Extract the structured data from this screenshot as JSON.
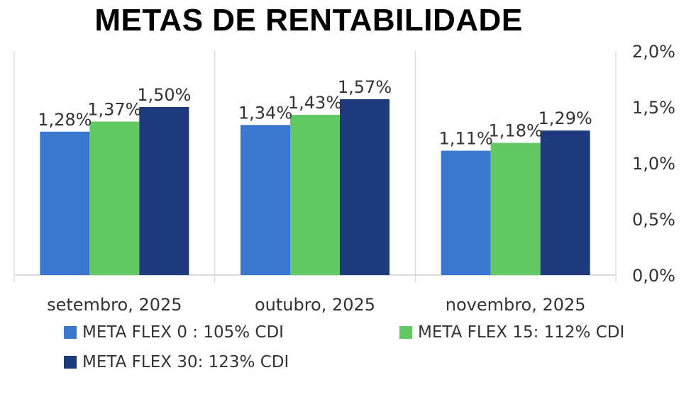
{
  "chart_data": {
    "type": "bar",
    "title": "METAS DE RENTABILIDADE",
    "categories": [
      "setembro, 2025",
      "outubro, 2025",
      "novembro, 2025"
    ],
    "series": [
      {
        "name": "META FLEX 0 : 105% CDI",
        "color": "#3A78CF",
        "values": [
          1.28,
          1.34,
          1.11
        ],
        "labels": [
          "1,28%",
          "1,34%",
          "1,11%"
        ]
      },
      {
        "name": "META FLEX 15: 112% CDI",
        "color": "#62C863",
        "values": [
          1.37,
          1.43,
          1.18
        ],
        "labels": [
          "1,37%",
          "1,43%",
          "1,18%"
        ]
      },
      {
        "name": "META FLEX 30: 123% CDI",
        "color": "#1E3A7D",
        "values": [
          1.5,
          1.57,
          1.29
        ],
        "labels": [
          "1,50%",
          "1,57%",
          "1,29%"
        ]
      }
    ],
    "ylim": [
      0,
      2.0
    ],
    "yticks": [
      {
        "value": 0,
        "label": "0,0%"
      },
      {
        "value": 0.5,
        "label": "0,5%"
      },
      {
        "value": 1.0,
        "label": "1,0%"
      },
      {
        "value": 1.5,
        "label": "1,5%"
      },
      {
        "value": 2.0,
        "label": "2,0%"
      }
    ],
    "y_axis_side": "right",
    "xlabel": "",
    "ylabel": "",
    "legend_position": "bottom"
  }
}
